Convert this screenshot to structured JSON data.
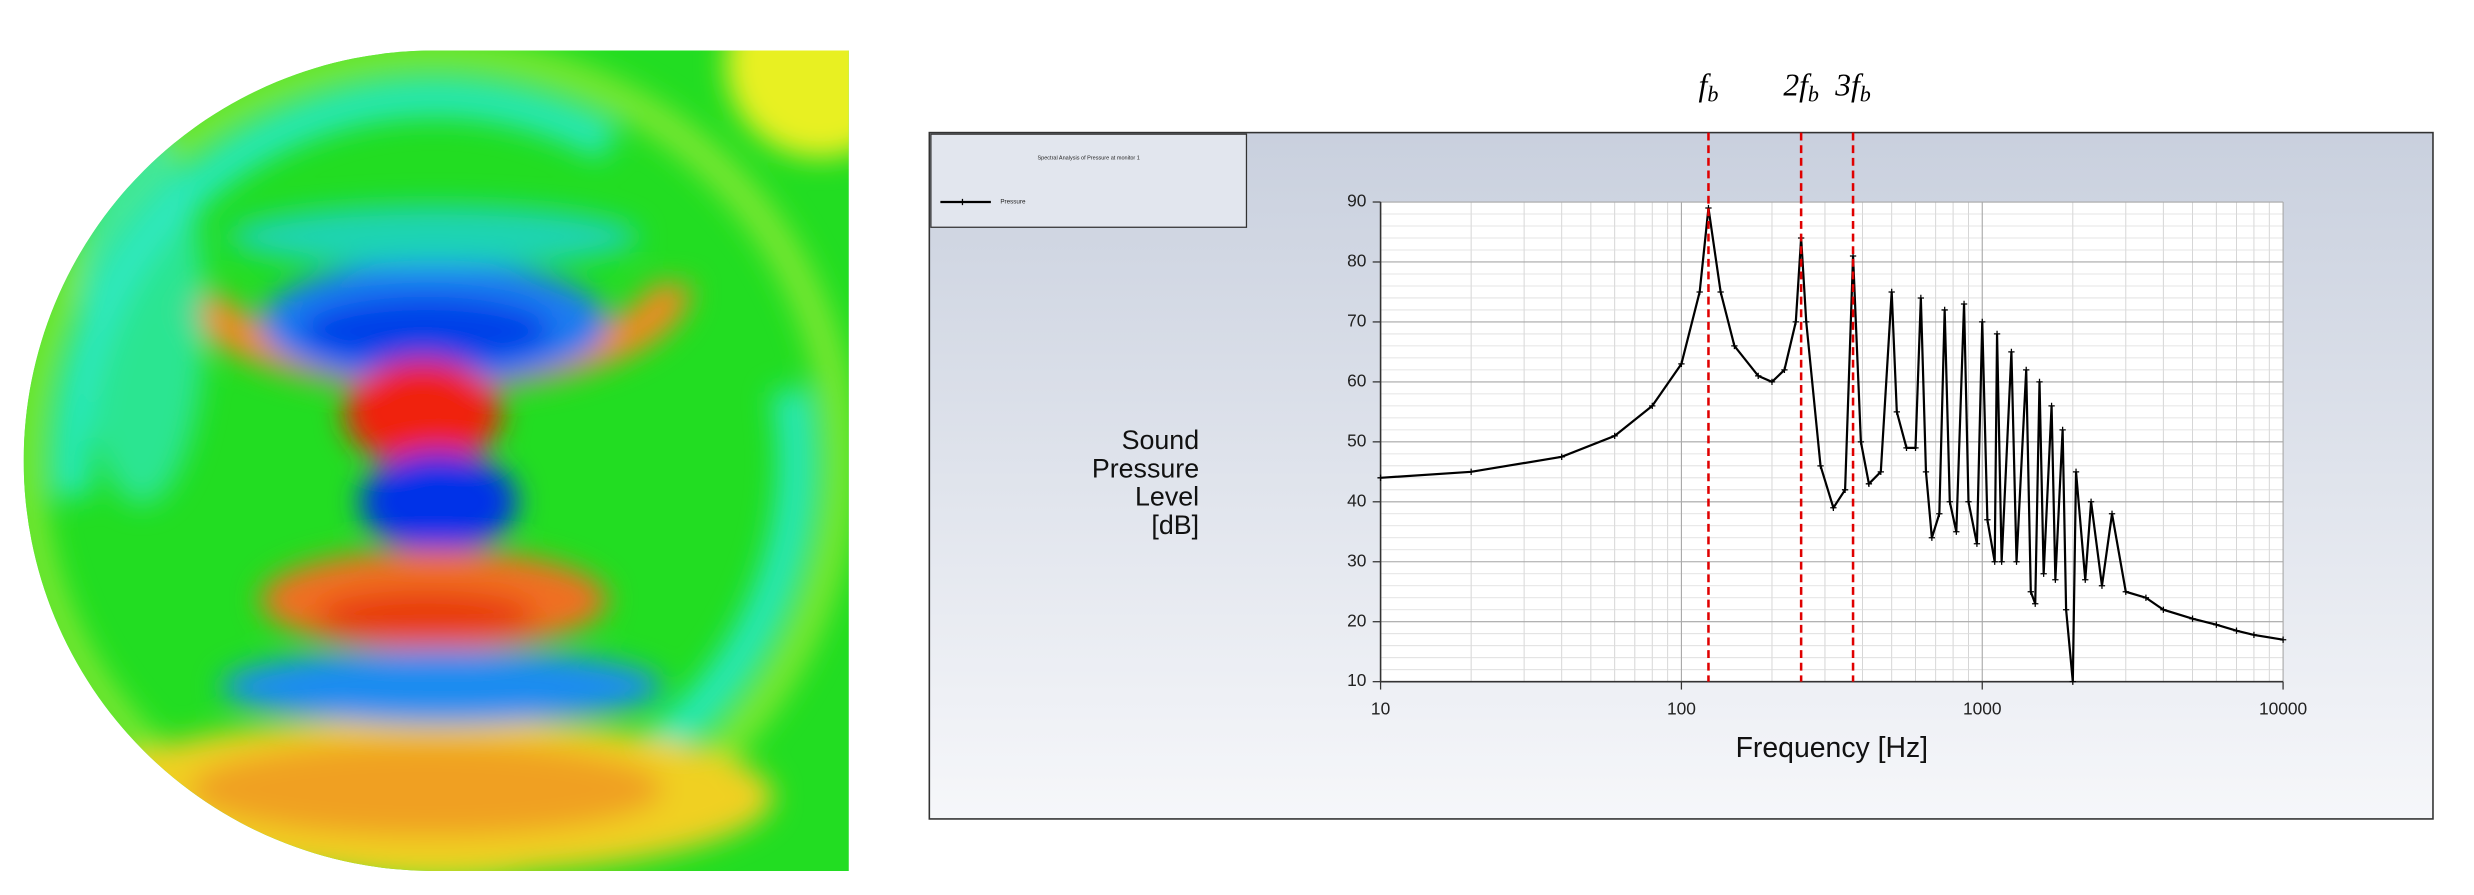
{
  "chart_data": {
    "type": "line",
    "title": "Spectral Analysis of Pressure at monitor 1",
    "x_label": "Frequency [Hz]",
    "y_label": [
      "Sound",
      "Pressure",
      "Level",
      "[dB]"
    ],
    "xscale": "log",
    "grid": true,
    "xlim": [
      10,
      10000
    ],
    "xticks": [
      10,
      100,
      1000,
      10000
    ],
    "ylim": [
      10,
      90
    ],
    "yticks": [
      10,
      20,
      30,
      40,
      50,
      60,
      70,
      80,
      90
    ],
    "markers": [
      {
        "x": 123,
        "label": {
          "text": "f",
          "sub": "b"
        }
      },
      {
        "x": 250,
        "label": {
          "text": "2f",
          "sub": "b"
        }
      },
      {
        "x": 372,
        "label": {
          "text": "3f",
          "sub": "b"
        }
      }
    ],
    "marker_color": "#e00000",
    "series": [
      {
        "name": "Pressure",
        "color": "#000000",
        "x": [
          10,
          20,
          40,
          60,
          80,
          100,
          115,
          123,
          135,
          150,
          180,
          200,
          220,
          240,
          250,
          260,
          290,
          320,
          350,
          372,
          395,
          420,
          460,
          500,
          520,
          560,
          600,
          625,
          650,
          680,
          720,
          750,
          780,
          820,
          870,
          900,
          960,
          1000,
          1040,
          1100,
          1120,
          1160,
          1250,
          1300,
          1400,
          1450,
          1500,
          1550,
          1600,
          1700,
          1750,
          1850,
          1900,
          2000,
          2050,
          2200,
          2300,
          2500,
          2700,
          3000,
          3500,
          4000,
          5000,
          6000,
          7000,
          8000,
          10000
        ],
        "values": [
          44,
          45,
          47.5,
          51,
          56,
          63,
          75,
          89,
          75,
          66,
          61,
          60,
          62,
          70,
          84,
          70,
          46,
          39,
          42,
          81,
          50,
          43,
          45,
          75,
          55,
          49,
          49,
          74,
          45,
          34,
          38,
          72,
          40,
          35,
          73,
          40,
          33,
          70,
          37,
          30,
          68,
          30,
          65,
          30,
          62,
          25,
          23,
          60,
          28,
          56,
          27,
          52,
          22,
          10,
          45,
          27,
          40,
          26,
          38,
          25,
          24,
          22,
          20.5,
          19.5,
          18.5,
          17.8,
          17
        ]
      }
    ]
  }
}
